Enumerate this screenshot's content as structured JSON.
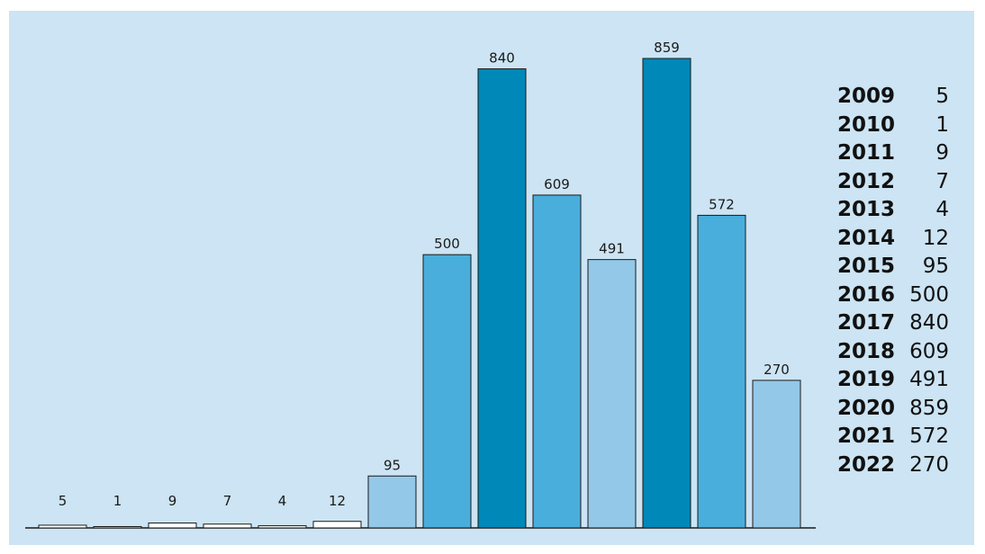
{
  "chart_data": {
    "type": "bar",
    "categories": [
      "2009",
      "2010",
      "2011",
      "2012",
      "2013",
      "2014",
      "2015",
      "2016",
      "2017",
      "2018",
      "2019",
      "2020",
      "2021",
      "2022"
    ],
    "values": [
      5,
      1,
      9,
      7,
      4,
      12,
      95,
      500,
      840,
      609,
      491,
      859,
      572,
      270
    ],
    "bar_colors": [
      "#ffffff",
      "#ffffff",
      "#ffffff",
      "#ffffff",
      "#ffffff",
      "#ffffff",
      "#94c8e8",
      "#4aaedc",
      "#0088b9",
      "#4aaedc",
      "#94c8e8",
      "#0088b9",
      "#4aaedc",
      "#94c8e8"
    ],
    "ylim": [
      0,
      859
    ],
    "grid": false,
    "legend_placement": "right",
    "background_color": "#cce4f3",
    "bar_outline_color": "#1a1a1a"
  }
}
